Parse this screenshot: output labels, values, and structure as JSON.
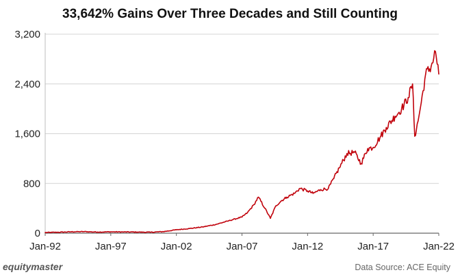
{
  "chart_data": {
    "type": "line",
    "title": "33,642% Gains Over Three Decades and Still Counting",
    "xlabel": "",
    "ylabel": "",
    "x_ticks": [
      "Jan-92",
      "Jan-97",
      "Jan-02",
      "Jan-07",
      "Jan-12",
      "Jan-17",
      "Jan-22"
    ],
    "y_ticks": [
      "0",
      "800",
      "1,600",
      "2,400",
      "3,200"
    ],
    "ylim": [
      0,
      3200
    ],
    "xlim": [
      "1992-01",
      "2022-01"
    ],
    "grid": "horizontal",
    "legend": "none",
    "series_color": "#c0000a",
    "series": [
      {
        "x": [
          "1992-01",
          "1993-01",
          "1994-01",
          "1995-01",
          "1996-01",
          "1997-01",
          "1998-01",
          "1999-01",
          "2000-01",
          "2001-01",
          "2002-01",
          "2003-01",
          "2004-01",
          "2005-01",
          "2006-01",
          "2007-01",
          "2007-06",
          "2007-12",
          "2008-04",
          "2008-10",
          "2009-03",
          "2009-08",
          "2010-01",
          "2010-06",
          "2011-01",
          "2011-06",
          "2012-01",
          "2012-06",
          "2013-01",
          "2013-08",
          "2014-01",
          "2014-06",
          "2015-01",
          "2015-08",
          "2016-02",
          "2016-08",
          "2017-01",
          "2017-08",
          "2018-01",
          "2018-09",
          "2019-03",
          "2019-09",
          "2020-01",
          "2020-03",
          "2020-06",
          "2020-09",
          "2021-01",
          "2021-06",
          "2021-10",
          "2022-01"
        ],
        "y": [
          10,
          15,
          22,
          25,
          18,
          22,
          20,
          18,
          15,
          25,
          55,
          75,
          100,
          140,
          200,
          260,
          330,
          460,
          580,
          400,
          240,
          440,
          520,
          580,
          640,
          720,
          680,
          640,
          700,
          720,
          880,
          1050,
          1280,
          1300,
          1120,
          1360,
          1380,
          1560,
          1700,
          1880,
          2000,
          2180,
          2400,
          1560,
          1800,
          2100,
          2560,
          2680,
          2920,
          2560
        ]
      }
    ]
  },
  "footer": {
    "brand": "equitymaster",
    "source": "Data Source: ACE Equity"
  }
}
